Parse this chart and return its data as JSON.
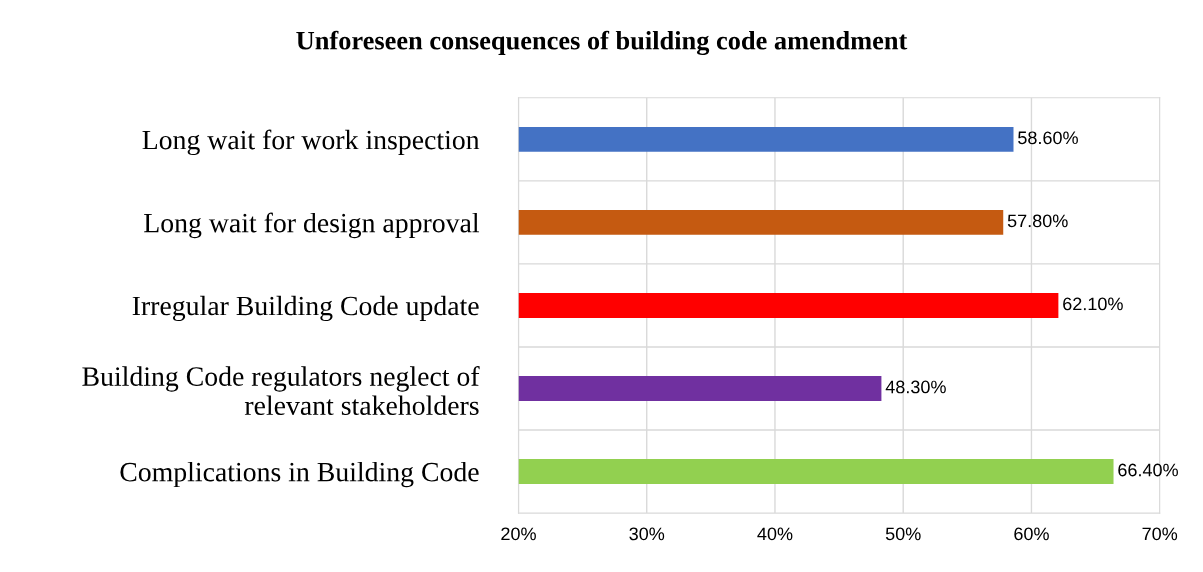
{
  "chart_data": {
    "type": "bar",
    "orientation": "horizontal",
    "title": "Unforeseen consequences of building code amendment",
    "categories": [
      "Long wait for work inspection",
      "Long wait for design approval",
      "Irregular Building Code update",
      "Building Code regulators neglect of\nrelevant stakeholders",
      "Complications in Building Code"
    ],
    "values": [
      58.6,
      57.8,
      62.1,
      48.3,
      66.4
    ],
    "colors": [
      "#4472c4",
      "#c55a11",
      "#ff0000",
      "#7030a0",
      "#92d050"
    ],
    "value_labels": [
      "58.60%",
      "57.80%",
      "62.10%",
      "48.30%",
      "66.40%"
    ],
    "xlim": [
      20,
      70
    ],
    "xticks": [
      {
        "value": 20,
        "label": "20%"
      },
      {
        "value": 30,
        "label": "30%"
      },
      {
        "value": 40,
        "label": "40%"
      },
      {
        "value": 50,
        "label": "50%"
      },
      {
        "value": 60,
        "label": "60%"
      },
      {
        "value": 70,
        "label": "70%"
      }
    ],
    "grid": "x"
  }
}
